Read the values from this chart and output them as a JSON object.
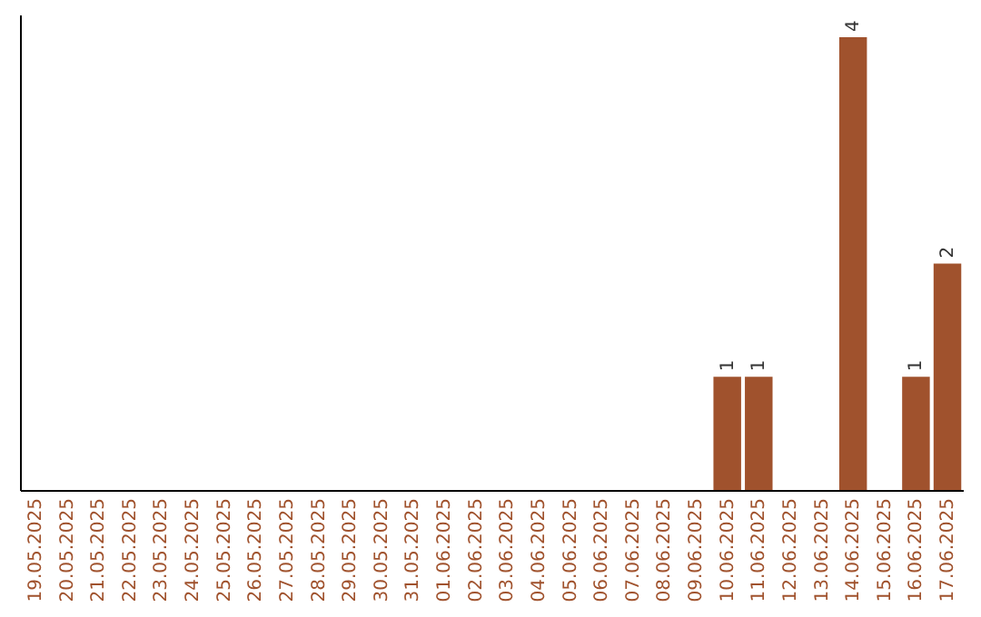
{
  "chart_data": {
    "type": "bar",
    "categories": [
      "19.05.2025",
      "20.05.2025",
      "21.05.2025",
      "22.05.2025",
      "23.05.2025",
      "24.05.2025",
      "25.05.2025",
      "26.05.2025",
      "27.05.2025",
      "28.05.2025",
      "29.05.2025",
      "30.05.2025",
      "31.05.2025",
      "01.06.2025",
      "02.06.2025",
      "03.06.2025",
      "04.06.2025",
      "05.06.2025",
      "06.06.2025",
      "07.06.2025",
      "08.06.2025",
      "09.06.2025",
      "10.06.2025",
      "11.06.2025",
      "12.06.2025",
      "13.06.2025",
      "14.06.2025",
      "15.06.2025",
      "16.06.2025",
      "17.06.2025"
    ],
    "values": [
      null,
      null,
      null,
      null,
      null,
      null,
      null,
      null,
      null,
      null,
      null,
      null,
      null,
      null,
      null,
      null,
      null,
      null,
      null,
      null,
      null,
      null,
      1,
      1,
      null,
      null,
      4,
      null,
      1,
      2
    ],
    "value_labels": [
      null,
      null,
      null,
      null,
      null,
      null,
      null,
      null,
      null,
      null,
      null,
      null,
      null,
      null,
      null,
      null,
      null,
      null,
      null,
      null,
      null,
      null,
      "1",
      "1",
      null,
      null,
      "4",
      null,
      "1",
      "2"
    ],
    "color": "#a0522d",
    "tick_labels": "x"
  }
}
